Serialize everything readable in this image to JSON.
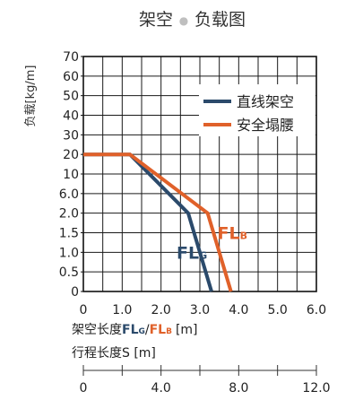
{
  "chart_data": {
    "type": "line",
    "title": {
      "left": "架空",
      "separator": "●",
      "right": "负载图"
    },
    "ylabel": "负载[kg/m]",
    "y_scale": "non-linear, equally spaced ticks",
    "y_ticks": [
      0,
      0.5,
      1.0,
      1.5,
      2.0,
      6.0,
      10,
      20,
      30,
      40,
      50,
      60,
      70
    ],
    "y_tick_labels": [
      "0",
      "0.5",
      "1.0",
      "1.5",
      "2.0",
      "6.0",
      "10",
      "20",
      "30",
      "40",
      "50",
      "60",
      "70"
    ],
    "xlim": [
      0,
      6.0
    ],
    "x_ticks": [
      0,
      0.5,
      1.0,
      1.5,
      2.0,
      2.5,
      3.0,
      3.5,
      4.0,
      4.5,
      5.0,
      5.5,
      6.0
    ],
    "x_tick_labels": [
      {
        "value": 0,
        "label": "0"
      },
      {
        "value": 1.0,
        "label": "1.0"
      },
      {
        "value": 2.0,
        "label": "2.0"
      },
      {
        "value": 3.0,
        "label": "3.0"
      },
      {
        "value": 4.0,
        "label": "4.0"
      },
      {
        "value": 5.0,
        "label": "5.0"
      },
      {
        "value": 6.0,
        "label": "6.0"
      }
    ],
    "grid": true,
    "legend_position": "top-right",
    "series": [
      {
        "name": "直线架空",
        "color": "#2b4a6b",
        "points": [
          [
            0,
            20
          ],
          [
            1.2,
            20
          ],
          [
            2.7,
            2.0
          ],
          [
            3.3,
            0
          ]
        ]
      },
      {
        "name": "安全塌腰",
        "color": "#e0612a",
        "points": [
          [
            0,
            20
          ],
          [
            1.2,
            20
          ],
          [
            3.2,
            2.0
          ],
          [
            3.8,
            0
          ]
        ]
      }
    ],
    "annotations": [
      {
        "id": "flg",
        "main": "FL",
        "sub": "G",
        "color": "#2b4a6b",
        "x": 2.4,
        "y": 1.0
      },
      {
        "id": "flb",
        "main": "FL",
        "sub": "B",
        "color": "#e0612a",
        "x": 3.45,
        "y": 1.5
      }
    ],
    "xlabel": {
      "part1": "架空长度",
      "flg_main": "FL",
      "flg_sub": "G",
      "slash": "/",
      "flb_main": "FL",
      "flb_sub": "B",
      "unit": "[m]",
      "flg_color": "#2b4a6b",
      "flb_color": "#e0612a"
    },
    "secondary_axis": {
      "label": "行程长度S [m]",
      "xlim": [
        0,
        12.0
      ],
      "ticks": [
        0,
        2.0,
        4.0,
        6.0,
        8.0,
        10.0,
        12.0
      ],
      "tick_labels": [
        {
          "value": 0,
          "label": "0"
        },
        {
          "value": 4.0,
          "label": "4.0"
        },
        {
          "value": 8.0,
          "label": "8.0"
        },
        {
          "value": 12.0,
          "label": "12.0"
        }
      ]
    }
  }
}
